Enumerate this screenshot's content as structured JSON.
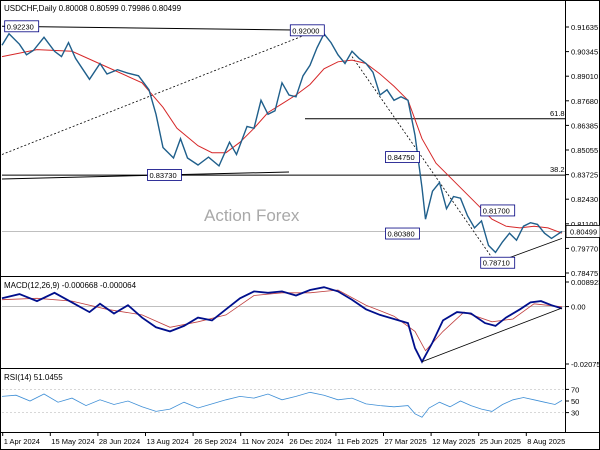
{
  "colors": {
    "price": "#1f5f8b",
    "ma": "#d62728",
    "macd": "#000f8c",
    "signal": "#c04040",
    "rsi": "#3f8fd6",
    "trend": "#000000",
    "box_border": "#000080"
  },
  "chart_data": [
    {
      "type": "line",
      "title": "USDCHF,Daily  0.80008 0.80599 0.79986 0.80499",
      "watermark": "Action Forex",
      "x_tick_labels": [
        "1 Apr 2024",
        "15 May 2024",
        "28 Jun 2024",
        "13 Aug 2024",
        "26 Sep 2024",
        "11 Nov 2024",
        "26 Dec 2024",
        "11 Feb 2025",
        "27 Mar 2025",
        "12 May 2025",
        "25 Jun 2025",
        "8 Aug 2025"
      ],
      "y_tick_labels": [
        "0.91635",
        "0.90345",
        "0.89010",
        "0.87680",
        "0.86385",
        "0.85055",
        "0.83725",
        "0.82430",
        "0.81100",
        "0.79770",
        "0.78475"
      ],
      "ylim": [
        0.7818,
        0.9219
      ],
      "current_value": "0.80499",
      "fib_levels": [
        {
          "label": "61.8",
          "value": 0.8694
        },
        {
          "label": "38.2",
          "value": 0.8372
        }
      ],
      "annotations": [
        {
          "text": "0.92230",
          "x": "1 Apr 2024",
          "y": 0.9223
        },
        {
          "text": "0.83730",
          "x": "13 Aug 2024",
          "y": 0.8373
        },
        {
          "text": "0.92000",
          "x": "26 Dec 2024",
          "y": 0.92
        },
        {
          "text": "0.84750",
          "x": "27 Mar 2025",
          "y": 0.8475
        },
        {
          "text": "0.80380",
          "x": "27 Mar 2025",
          "y": 0.8038
        },
        {
          "text": "0.81700",
          "x": "25 Jun 2025",
          "y": 0.817
        },
        {
          "text": "0.78710",
          "x": "25 Jun 2025",
          "y": 0.7871
        }
      ],
      "series": [
        {
          "key": "close",
          "points": [
            [
              0,
              0.9115
            ],
            [
              2,
              0.918
            ],
            [
              5,
              0.912
            ],
            [
              7,
              0.906
            ],
            [
              9,
              0.9085
            ],
            [
              12,
              0.916
            ],
            [
              15,
              0.908
            ],
            [
              17,
              0.905
            ],
            [
              19,
              0.913
            ],
            [
              21,
              0.904
            ],
            [
              23,
              0.898
            ],
            [
              25,
              0.892
            ],
            [
              28,
              0.901
            ],
            [
              30,
              0.895
            ],
            [
              33,
              0.8975
            ],
            [
              36,
              0.8955
            ],
            [
              39,
              0.894
            ],
            [
              42,
              0.886
            ],
            [
              44,
              0.872
            ],
            [
              46,
              0.853
            ],
            [
              49,
              0.847
            ],
            [
              51,
              0.858
            ],
            [
              53,
              0.847
            ],
            [
              56,
              0.843
            ],
            [
              59,
              0.8475
            ],
            [
              62,
              0.8425
            ],
            [
              65,
              0.856
            ],
            [
              67,
              0.849
            ],
            [
              70,
              0.865
            ],
            [
              72,
              0.864
            ],
            [
              74,
              0.88
            ],
            [
              76,
              0.872
            ],
            [
              78,
              0.874
            ],
            [
              80,
              0.89
            ],
            [
              82,
              0.883
            ],
            [
              84,
              0.882
            ],
            [
              86,
              0.894
            ],
            [
              88,
              0.9
            ],
            [
              90,
              0.91
            ],
            [
              92,
              0.918
            ],
            [
              94,
              0.913
            ],
            [
              96,
              0.906
            ],
            [
              98,
              0.901
            ],
            [
              100,
              0.908
            ],
            [
              102,
              0.904
            ],
            [
              104,
              0.901
            ],
            [
              106,
              0.896
            ],
            [
              108,
              0.883
            ],
            [
              110,
              0.886
            ],
            [
              112,
              0.88
            ],
            [
              114,
              0.882
            ],
            [
              116,
              0.88
            ],
            [
              118,
              0.86
            ],
            [
              120,
              0.83
            ],
            [
              121,
              0.812
            ],
            [
              123,
              0.828
            ],
            [
              125,
              0.833
            ],
            [
              127,
              0.818
            ],
            [
              129,
              0.825
            ],
            [
              131,
              0.824
            ],
            [
              133,
              0.814
            ],
            [
              135,
              0.807
            ],
            [
              137,
              0.811
            ],
            [
              139,
              0.797
            ],
            [
              141,
              0.793
            ],
            [
              143,
              0.799
            ],
            [
              145,
              0.804
            ],
            [
              147,
              0.8
            ],
            [
              149,
              0.808
            ],
            [
              151,
              0.81
            ],
            [
              153,
              0.809
            ],
            [
              155,
              0.804
            ],
            [
              157,
              0.801
            ],
            [
              160,
              0.805
            ]
          ]
        },
        {
          "key": "ma",
          "points": [
            [
              0,
              0.905
            ],
            [
              10,
              0.909
            ],
            [
              20,
              0.908
            ],
            [
              30,
              0.899
            ],
            [
              40,
              0.89
            ],
            [
              46,
              0.876
            ],
            [
              50,
              0.864
            ],
            [
              56,
              0.854
            ],
            [
              60,
              0.85
            ],
            [
              64,
              0.85
            ],
            [
              68,
              0.856
            ],
            [
              72,
              0.864
            ],
            [
              76,
              0.873
            ],
            [
              80,
              0.878
            ],
            [
              84,
              0.883
            ],
            [
              88,
              0.889
            ],
            [
              92,
              0.898
            ],
            [
              96,
              0.902
            ],
            [
              100,
              0.903
            ],
            [
              104,
              0.901
            ],
            [
              108,
              0.895
            ],
            [
              112,
              0.888
            ],
            [
              116,
              0.88
            ],
            [
              120,
              0.858
            ],
            [
              124,
              0.844
            ],
            [
              128,
              0.836
            ],
            [
              132,
              0.828
            ],
            [
              136,
              0.82
            ],
            [
              140,
              0.812
            ],
            [
              144,
              0.808
            ],
            [
              148,
              0.807
            ],
            [
              152,
              0.808
            ],
            [
              156,
              0.807
            ],
            [
              160,
              0.804
            ]
          ]
        }
      ],
      "trendlines": [
        [
          [
            0,
            0.849
          ],
          [
            90,
            0.92
          ]
        ],
        [
          [
            0,
            0.9223
          ],
          [
            92,
            0.92
          ]
        ],
        [
          [
            0,
            0.835
          ],
          [
            82,
            0.839
          ]
        ],
        [
          [
            100,
            0.905
          ],
          [
            141,
            0.7871
          ]
        ],
        [
          [
            141,
            0.7871
          ],
          [
            160,
            0.801
          ]
        ]
      ]
    },
    {
      "type": "line",
      "title": "MACD(12,26,9)  -0.000668  -0.000064",
      "y_tick_labels": [
        "0.008923",
        "0.00",
        "-0.020759"
      ],
      "ylim": [
        -0.0208,
        0.0089
      ],
      "series": [
        {
          "key": "macd",
          "points": [
            [
              0,
              0.003
            ],
            [
              5,
              0.0045
            ],
            [
              10,
              0.002
            ],
            [
              15,
              0.005
            ],
            [
              20,
              0.0015
            ],
            [
              25,
              -0.002
            ],
            [
              28,
              0.001
            ],
            [
              32,
              -0.0025
            ],
            [
              36,
              0.0005
            ],
            [
              40,
              -0.004
            ],
            [
              44,
              -0.0075
            ],
            [
              48,
              -0.009
            ],
            [
              52,
              -0.007
            ],
            [
              56,
              -0.004
            ],
            [
              60,
              -0.005
            ],
            [
              64,
              -0.001
            ],
            [
              68,
              0.003
            ],
            [
              72,
              0.0055
            ],
            [
              76,
              0.005
            ],
            [
              80,
              0.0055
            ],
            [
              84,
              0.004
            ],
            [
              88,
              0.006
            ],
            [
              92,
              0.007
            ],
            [
              96,
              0.0055
            ],
            [
              100,
              0.0025
            ],
            [
              104,
              -0.001
            ],
            [
              108,
              -0.003
            ],
            [
              112,
              -0.0045
            ],
            [
              116,
              -0.006
            ],
            [
              118,
              -0.015
            ],
            [
              120,
              -0.02
            ],
            [
              123,
              -0.013
            ],
            [
              126,
              -0.005
            ],
            [
              130,
              -0.002
            ],
            [
              134,
              -0.0025
            ],
            [
              138,
              -0.006
            ],
            [
              141,
              -0.007
            ],
            [
              144,
              -0.004
            ],
            [
              148,
              -0.001
            ],
            [
              151,
              0.0015
            ],
            [
              154,
              0.002
            ],
            [
              157,
              0.0005
            ],
            [
              160,
              -0.0007
            ]
          ]
        },
        {
          "key": "signal",
          "points": [
            [
              0,
              0.0025
            ],
            [
              10,
              0.003
            ],
            [
              20,
              0.002
            ],
            [
              30,
              -0.001
            ],
            [
              40,
              -0.003
            ],
            [
              48,
              -0.0075
            ],
            [
              56,
              -0.0055
            ],
            [
              64,
              -0.003
            ],
            [
              72,
              0.004
            ],
            [
              80,
              0.005
            ],
            [
              88,
              0.005
            ],
            [
              96,
              0.006
            ],
            [
              104,
              0.0005
            ],
            [
              112,
              -0.0035
            ],
            [
              118,
              -0.009
            ],
            [
              121,
              -0.016
            ],
            [
              126,
              -0.009
            ],
            [
              132,
              -0.002
            ],
            [
              140,
              -0.0055
            ],
            [
              146,
              -0.0045
            ],
            [
              152,
              0.001
            ],
            [
              160,
              -0.0001
            ]
          ]
        }
      ],
      "trendlines": [
        [
          [
            120,
            -0.02
          ],
          [
            160,
            -0.0005
          ]
        ]
      ]
    },
    {
      "type": "line",
      "title": "RSI(14) 51.0455",
      "y_tick_labels": [
        "70",
        "50",
        "30"
      ],
      "ylim": [
        0,
        100
      ],
      "series": [
        {
          "key": "rsi",
          "points": [
            [
              0,
              58
            ],
            [
              4,
              60
            ],
            [
              8,
              50
            ],
            [
              12,
              62
            ],
            [
              16,
              48
            ],
            [
              20,
              55
            ],
            [
              24,
              42
            ],
            [
              28,
              52
            ],
            [
              32,
              44
            ],
            [
              36,
              50
            ],
            [
              40,
              40
            ],
            [
              44,
              32
            ],
            [
              48,
              36
            ],
            [
              52,
              48
            ],
            [
              56,
              38
            ],
            [
              60,
              45
            ],
            [
              64,
              52
            ],
            [
              68,
              58
            ],
            [
              72,
              55
            ],
            [
              76,
              62
            ],
            [
              80,
              52
            ],
            [
              84,
              58
            ],
            [
              88,
              65
            ],
            [
              92,
              60
            ],
            [
              96,
              52
            ],
            [
              100,
              55
            ],
            [
              104,
              45
            ],
            [
              108,
              42
            ],
            [
              112,
              40
            ],
            [
              116,
              42
            ],
            [
              118,
              28
            ],
            [
              120,
              22
            ],
            [
              122,
              38
            ],
            [
              125,
              48
            ],
            [
              128,
              40
            ],
            [
              131,
              50
            ],
            [
              134,
              42
            ],
            [
              137,
              36
            ],
            [
              140,
              32
            ],
            [
              143,
              44
            ],
            [
              146,
              52
            ],
            [
              149,
              56
            ],
            [
              152,
              52
            ],
            [
              155,
              48
            ],
            [
              158,
              44
            ],
            [
              160,
              51
            ]
          ]
        }
      ]
    }
  ]
}
